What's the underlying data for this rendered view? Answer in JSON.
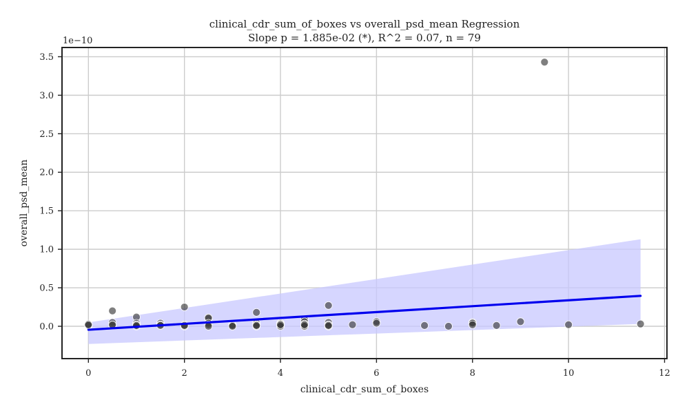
{
  "chart_data": {
    "type": "scatter",
    "title": "clinical_cdr_sum_of_boxes vs overall_psd_mean Regression",
    "subtitle": "Slope p = 1.885e-02 (*), R^2 = 0.07, n = 79",
    "xlabel": "clinical_cdr_sum_of_boxes",
    "ylabel": "overall_psd_mean",
    "y_offset_label": "1e−10",
    "xlim": [
      -0.55,
      12.05
    ],
    "ylim": [
      -0.42,
      3.62
    ],
    "x_ticks": [
      0,
      2,
      4,
      6,
      8,
      10,
      12
    ],
    "x_tick_labels": [
      "0",
      "2",
      "4",
      "6",
      "8",
      "10",
      "12"
    ],
    "y_ticks": [
      0.0,
      0.5,
      1.0,
      1.5,
      2.0,
      2.5,
      3.0,
      3.5
    ],
    "y_tick_labels": [
      "0.0",
      "0.5",
      "1.0",
      "1.5",
      "2.0",
      "2.5",
      "3.0",
      "3.5"
    ],
    "grid": true,
    "colors": {
      "points": "#3a3a3a",
      "regression_line": "#0000ee",
      "ci_band": "#c8c8ff",
      "grid": "#cccccc"
    },
    "points": [
      {
        "x": 0,
        "y": 0.03
      },
      {
        "x": 0,
        "y": 0.01
      },
      {
        "x": 0,
        "y": 0.02
      },
      {
        "x": 0.5,
        "y": 0.2
      },
      {
        "x": 0.5,
        "y": 0.05
      },
      {
        "x": 0.5,
        "y": 0.01
      },
      {
        "x": 0.5,
        "y": 0.02
      },
      {
        "x": 1,
        "y": 0.12
      },
      {
        "x": 1,
        "y": 0.04
      },
      {
        "x": 1,
        "y": 0.02
      },
      {
        "x": 1,
        "y": 0.0
      },
      {
        "x": 1,
        "y": 0.01
      },
      {
        "x": 1.5,
        "y": 0.04
      },
      {
        "x": 1.5,
        "y": 0.02
      },
      {
        "x": 1.5,
        "y": 0.01
      },
      {
        "x": 2,
        "y": 0.25
      },
      {
        "x": 2,
        "y": 0.02
      },
      {
        "x": 2,
        "y": 0.0
      },
      {
        "x": 2,
        "y": 0.01
      },
      {
        "x": 2.5,
        "y": 0.1
      },
      {
        "x": 2.5,
        "y": 0.11
      },
      {
        "x": 2.5,
        "y": 0.04
      },
      {
        "x": 2.5,
        "y": 0.02
      },
      {
        "x": 2.5,
        "y": 0.0
      },
      {
        "x": 3,
        "y": 0.02
      },
      {
        "x": 3,
        "y": 0.01
      },
      {
        "x": 3,
        "y": 0.0
      },
      {
        "x": 3.5,
        "y": 0.18
      },
      {
        "x": 3.5,
        "y": 0.04
      },
      {
        "x": 3.5,
        "y": 0.02
      },
      {
        "x": 3.5,
        "y": 0.0
      },
      {
        "x": 3.5,
        "y": 0.01
      },
      {
        "x": 4,
        "y": 0.04
      },
      {
        "x": 4,
        "y": 0.03
      },
      {
        "x": 4,
        "y": 0.01
      },
      {
        "x": 4,
        "y": 0.0
      },
      {
        "x": 4,
        "y": 0.02
      },
      {
        "x": 4.5,
        "y": 0.09
      },
      {
        "x": 4.5,
        "y": 0.06
      },
      {
        "x": 4.5,
        "y": 0.03
      },
      {
        "x": 4.5,
        "y": 0.01
      },
      {
        "x": 4.5,
        "y": 0.0
      },
      {
        "x": 4.5,
        "y": 0.02
      },
      {
        "x": 5,
        "y": 0.27
      },
      {
        "x": 5,
        "y": 0.05
      },
      {
        "x": 5,
        "y": 0.02
      },
      {
        "x": 5,
        "y": 0.0
      },
      {
        "x": 5,
        "y": 0.01
      },
      {
        "x": 5.5,
        "y": 0.02
      },
      {
        "x": 6,
        "y": 0.06
      },
      {
        "x": 6,
        "y": 0.04
      },
      {
        "x": 7,
        "y": 0.01
      },
      {
        "x": 7.5,
        "y": 0.0
      },
      {
        "x": 8,
        "y": 0.05
      },
      {
        "x": 8,
        "y": 0.04
      },
      {
        "x": 8,
        "y": 0.02
      },
      {
        "x": 8.5,
        "y": 0.01
      },
      {
        "x": 9,
        "y": 0.06
      },
      {
        "x": 9.5,
        "y": 3.43
      },
      {
        "x": 10,
        "y": 0.02
      },
      {
        "x": 11.5,
        "y": 0.03
      }
    ],
    "regression": {
      "x": [
        0,
        11.5
      ],
      "y": [
        -0.045,
        0.395
      ],
      "ci_lower": [
        -0.23,
        0.03
      ],
      "ci_upper": [
        0.05,
        1.13
      ]
    }
  }
}
